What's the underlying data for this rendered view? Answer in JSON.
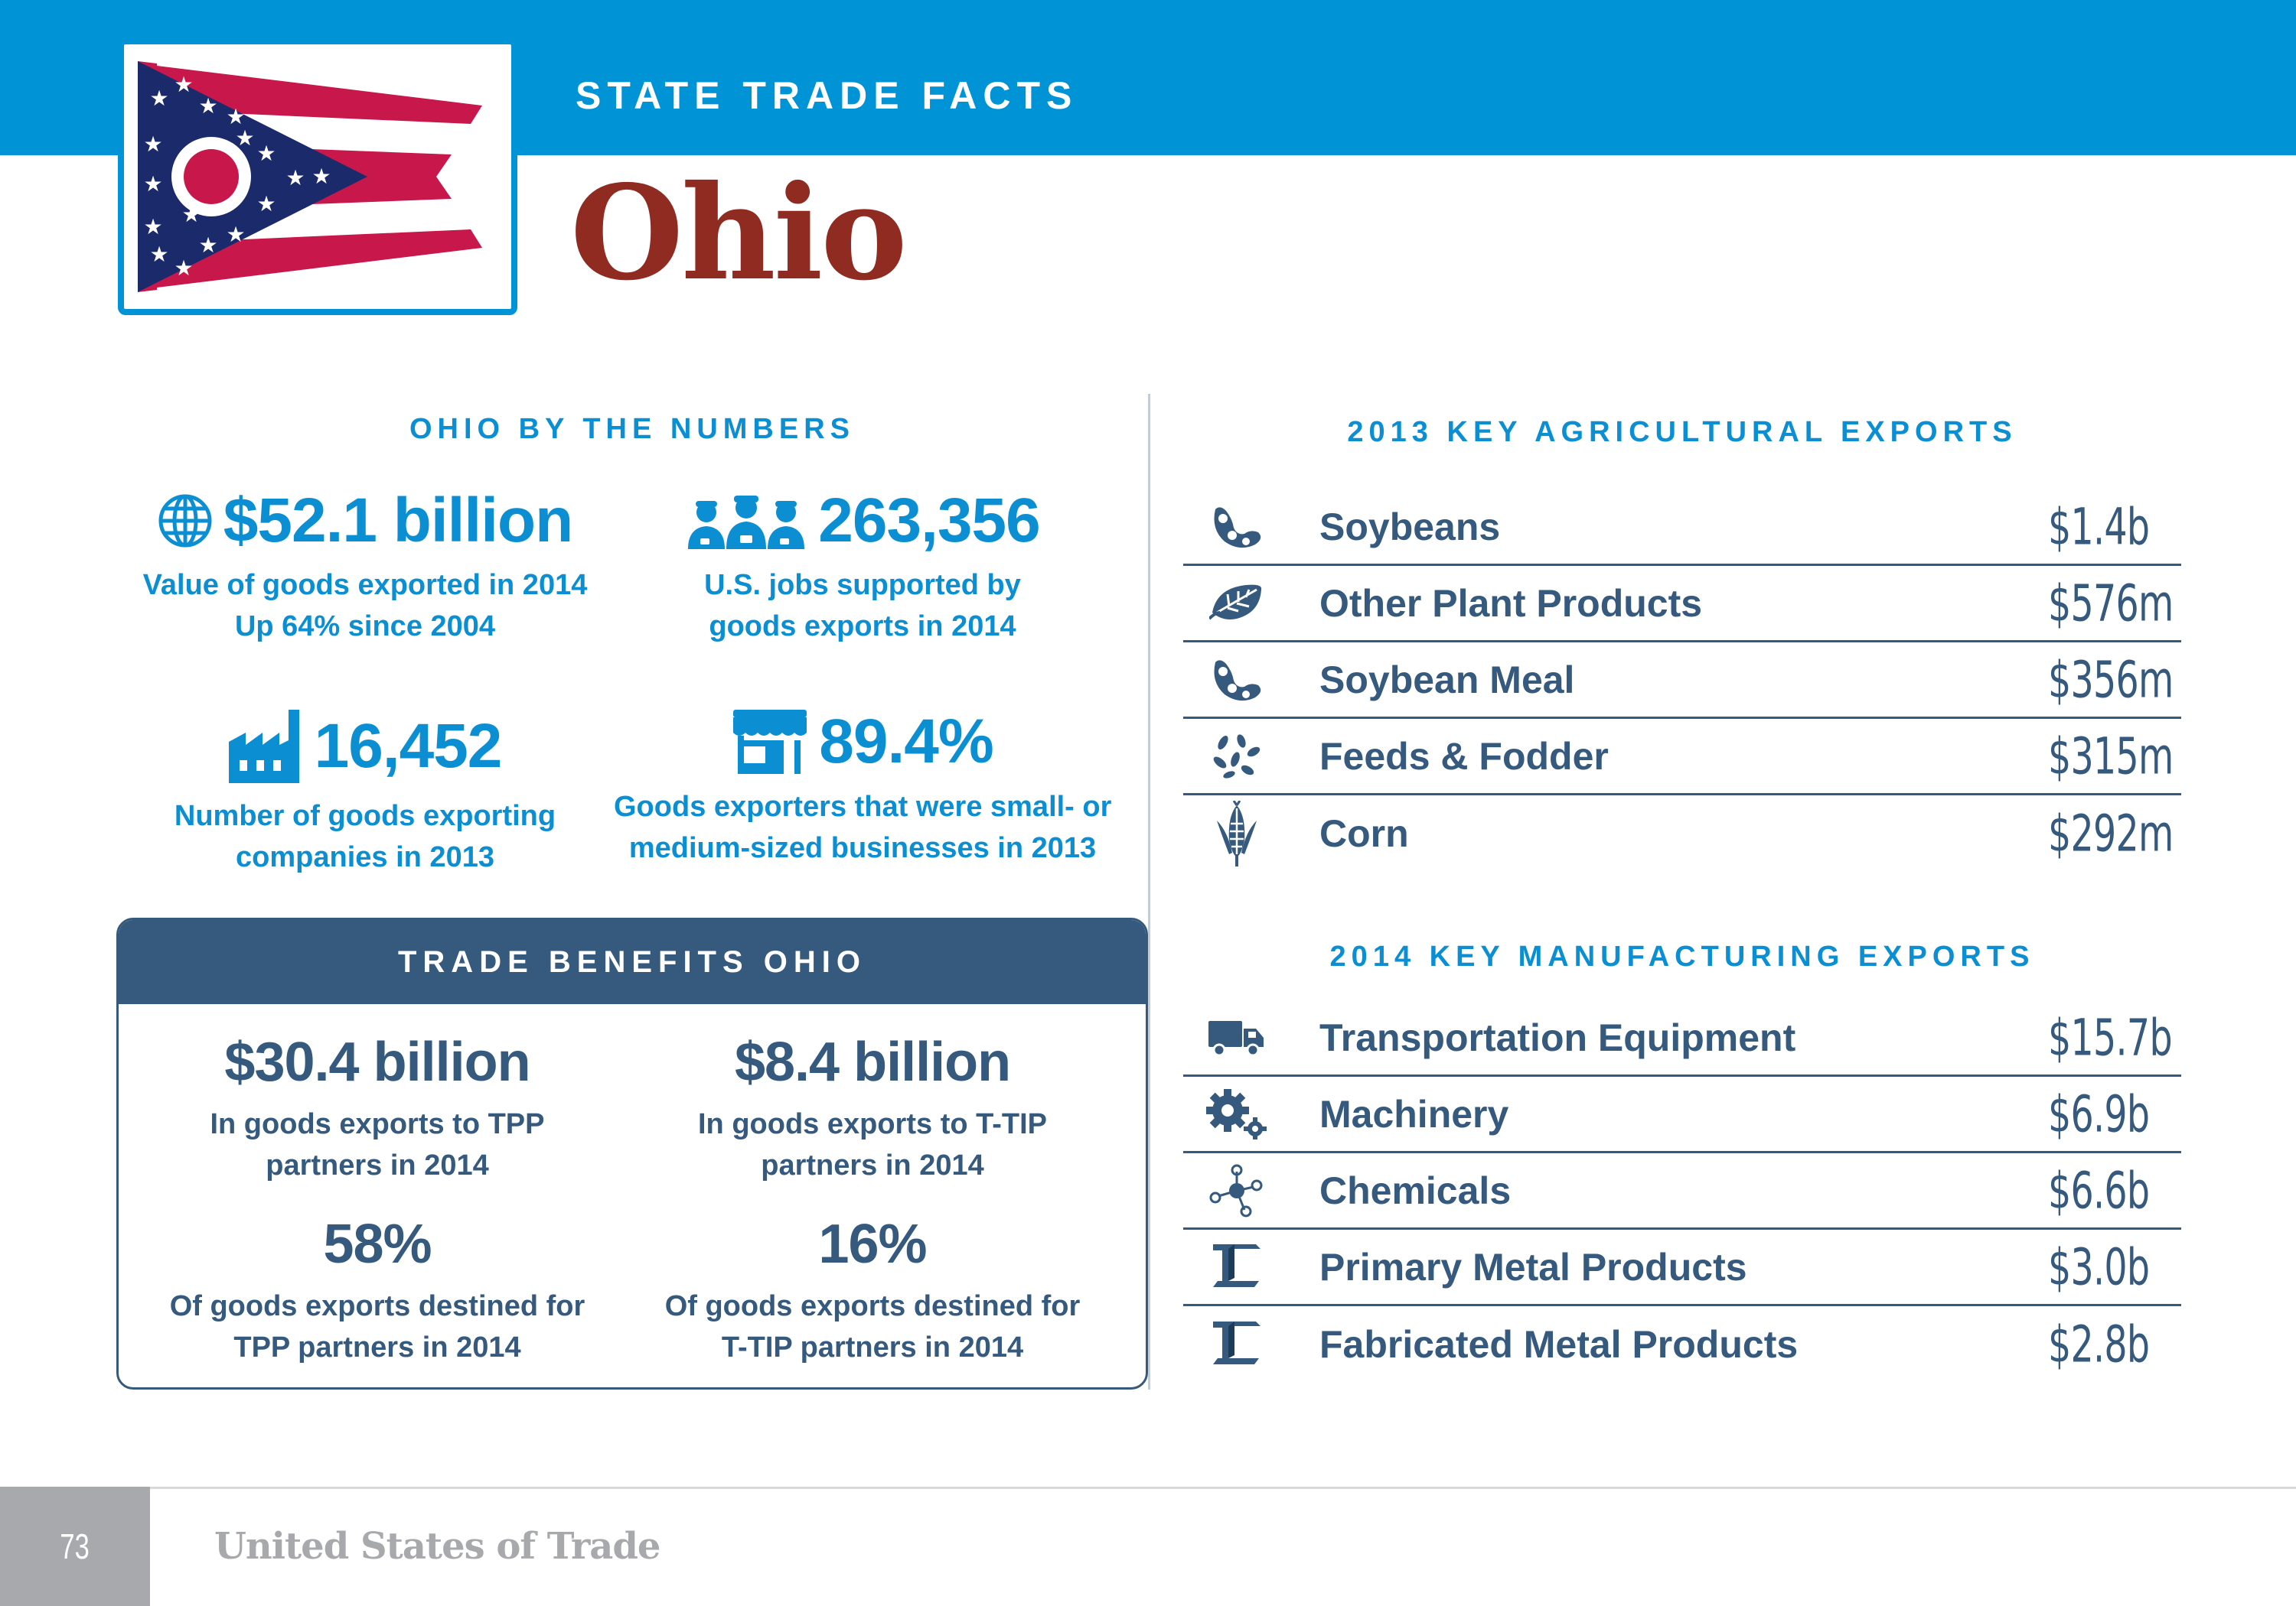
{
  "header": {
    "kicker": "STATE TRADE FACTS",
    "state_name": "Ohio",
    "colors": {
      "bar": "#0093d5",
      "title": "#8f2b21"
    },
    "flag_icon": "ohio-flag"
  },
  "by_numbers": {
    "heading": "OHIO BY THE NUMBERS",
    "stats": [
      {
        "icon": "globe-icon",
        "value": "$52.1 billion",
        "lines": [
          "Value of goods exported in 2014",
          "Up 64% since 2004"
        ]
      },
      {
        "icon": "workers-icon",
        "value": "263,356",
        "lines": [
          "U.S. jobs supported by",
          "goods exports in 2014"
        ]
      },
      {
        "icon": "factory-icon",
        "value": "16,452",
        "lines": [
          "Number of goods exporting",
          "companies in 2013"
        ]
      },
      {
        "icon": "storefront-icon",
        "value": "89.4%",
        "lines": [
          "Goods exporters that were small- or",
          "medium-sized businesses in 2013"
        ]
      }
    ]
  },
  "trade_benefits": {
    "heading": "TRADE BENEFITS OHIO",
    "stats": [
      {
        "value": "$30.4 billion",
        "lines": [
          "In goods exports to TPP",
          "partners in 2014"
        ]
      },
      {
        "value": "$8.4 billion",
        "lines": [
          "In goods exports to T-TIP",
          "partners in 2014"
        ]
      },
      {
        "value": "58%",
        "lines": [
          "Of goods exports destined for",
          "TPP partners in 2014"
        ]
      },
      {
        "value": "16%",
        "lines": [
          "Of goods exports destined for",
          "T-TIP partners in 2014"
        ]
      }
    ]
  },
  "agricultural": {
    "heading": "2013 KEY AGRICULTURAL EXPORTS",
    "rows": [
      {
        "icon": "soybean-icon",
        "label": "Soybeans",
        "value": "$1.4b"
      },
      {
        "icon": "leaf-icon",
        "label": "Other Plant Products",
        "value": "$576m"
      },
      {
        "icon": "soybean-icon",
        "label": "Soybean Meal",
        "value": "$356m"
      },
      {
        "icon": "grain-icon",
        "label": "Feeds & Fodder",
        "value": "$315m"
      },
      {
        "icon": "corn-icon",
        "label": "Corn",
        "value": "$292m"
      }
    ]
  },
  "manufacturing": {
    "heading": "2014 KEY MANUFACTURING EXPORTS",
    "rows": [
      {
        "icon": "truck-icon",
        "label": "Transportation Equipment",
        "value": "$15.7b"
      },
      {
        "icon": "gears-icon",
        "label": "Machinery",
        "value": "$6.9b"
      },
      {
        "icon": "molecule-icon",
        "label": "Chemicals",
        "value": "$6.6b"
      },
      {
        "icon": "i-beam-icon",
        "label": "Primary Metal Products",
        "value": "$3.0b"
      },
      {
        "icon": "i-beam-icon",
        "label": "Fabricated Metal Products",
        "value": "$2.8b"
      }
    ]
  },
  "footer": {
    "page_number": "73",
    "publication": "United States of Trade"
  }
}
